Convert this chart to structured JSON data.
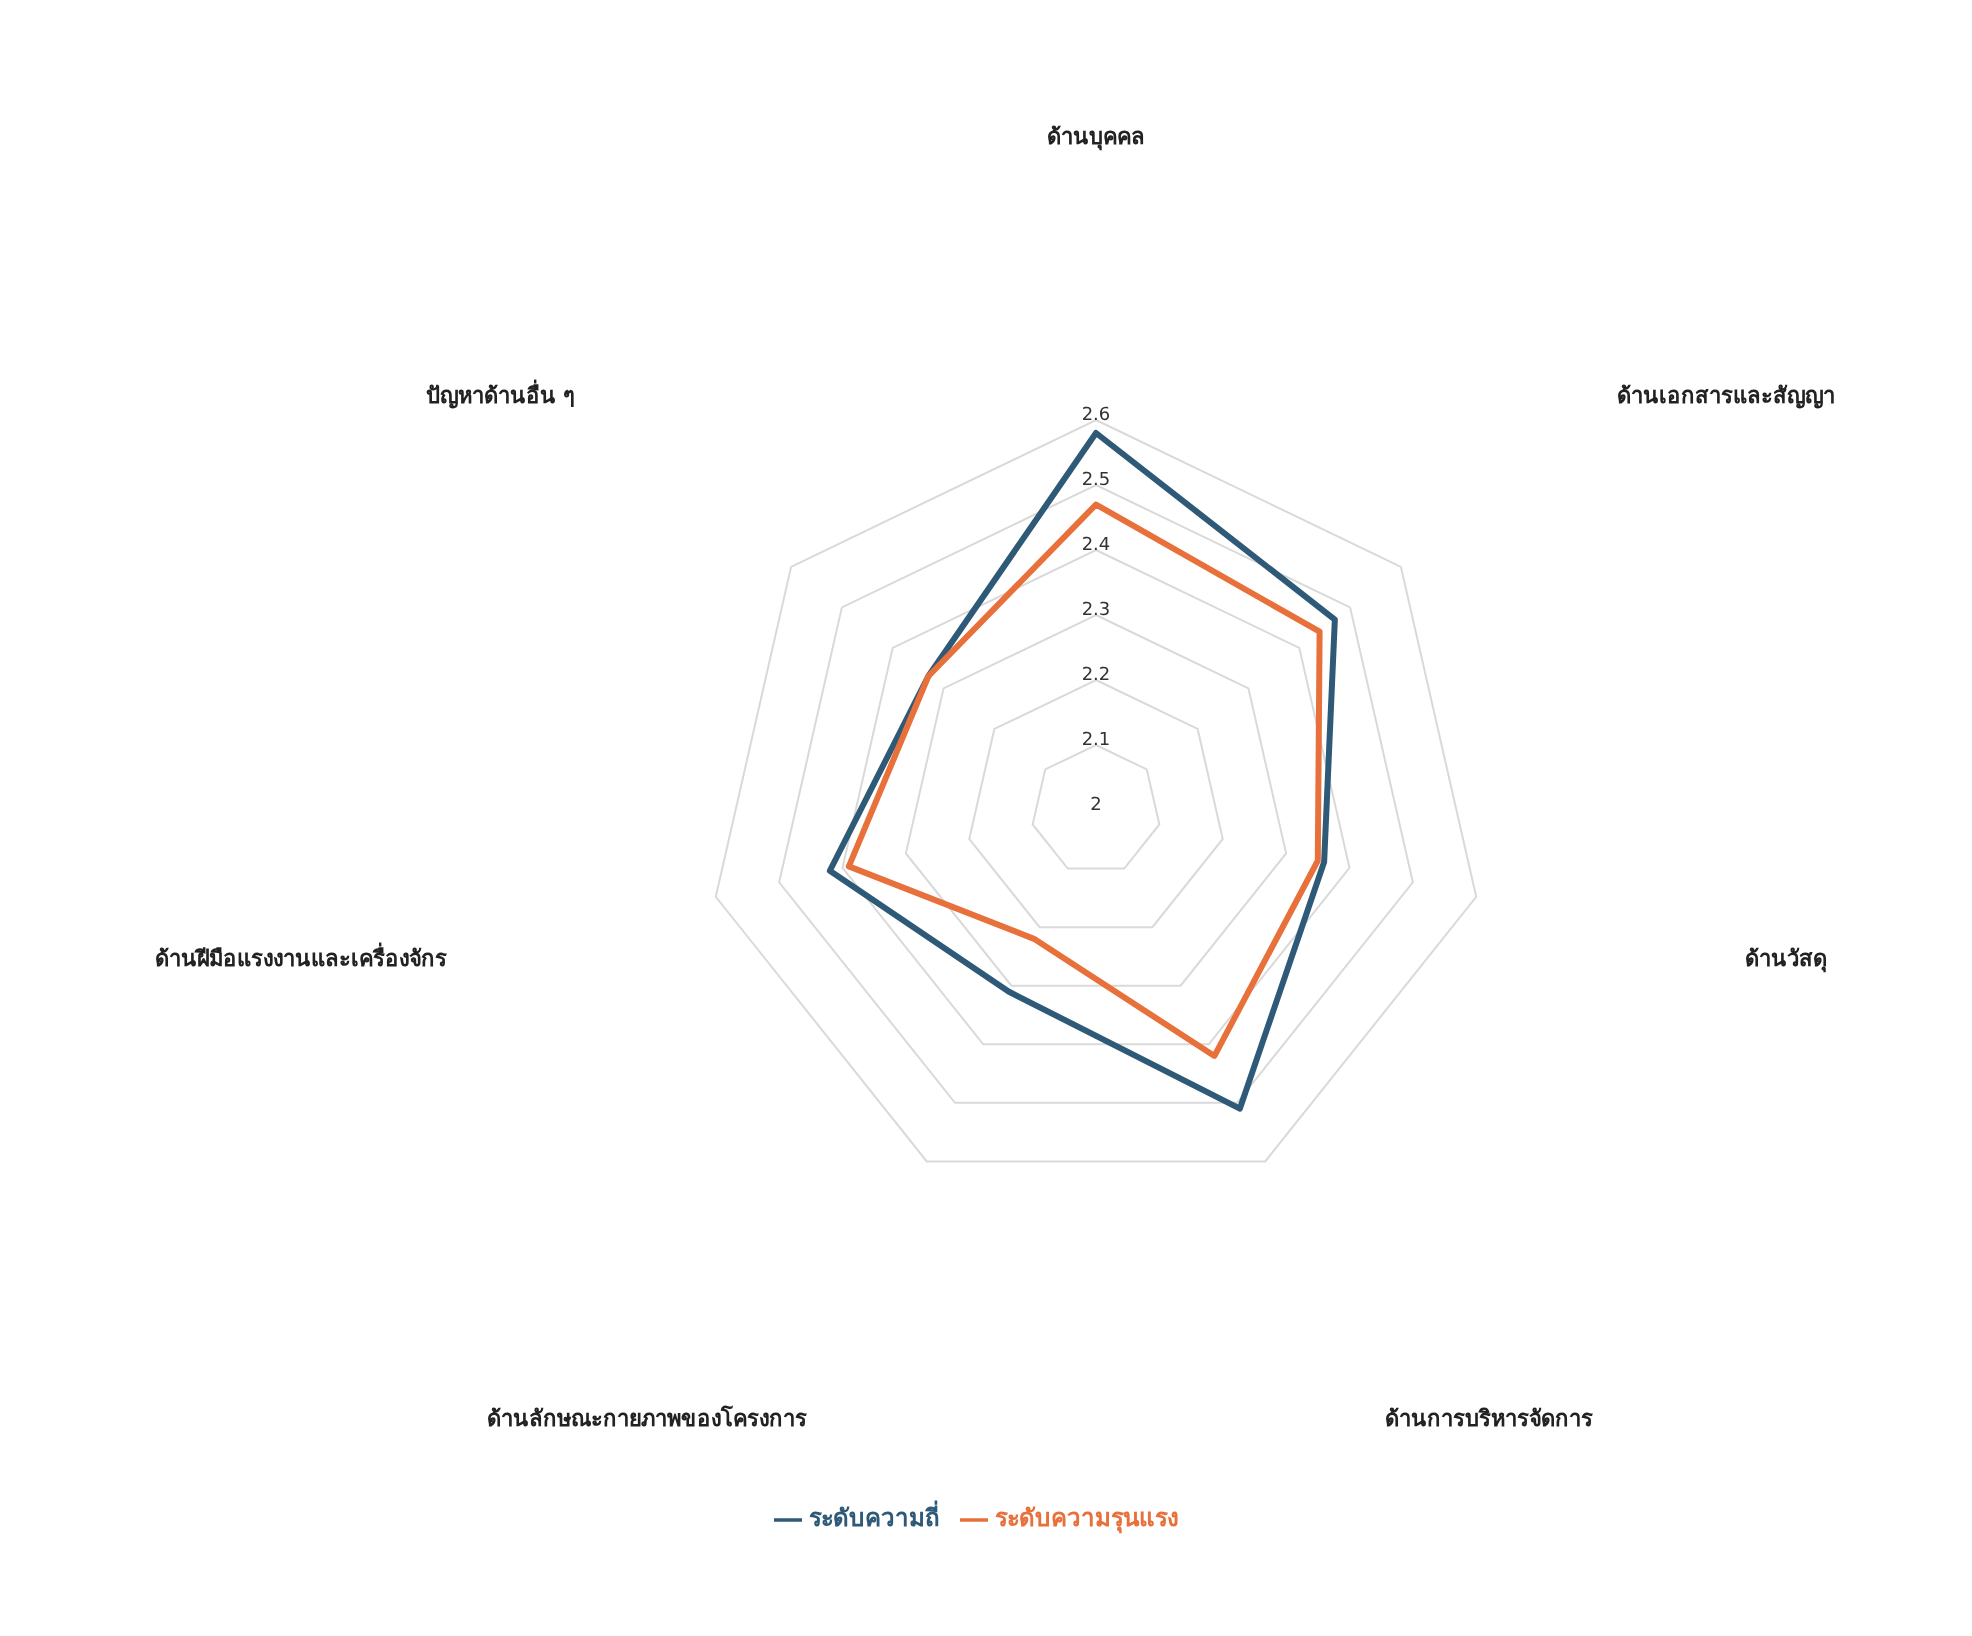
{
  "chart_data": {
    "type": "radar",
    "categories": [
      "ด้านบุคคล",
      "ด้านเอกสารและสัญญา",
      "ด้านวัสดุ",
      "ด้านการบริหารจัดการ",
      "ด้านลักษณะกายภาพของโครงการ",
      "ด้านฝีมือแรงงานและเครื่องจักร",
      "ปัญหาด้านอื่น ๆ"
    ],
    "series": [
      {
        "name": "ระดับความถี่",
        "color": "#2e5a78",
        "values": [
          2.58,
          2.47,
          2.36,
          2.51,
          2.31,
          2.42,
          2.33
        ]
      },
      {
        "name": "ระดับความรุนแรง",
        "color": "#e8703a",
        "values": [
          2.47,
          2.44,
          2.35,
          2.42,
          2.22,
          2.39,
          2.33
        ]
      }
    ],
    "ylim": [
      2,
      2.6
    ],
    "yticks": [
      2,
      2.1,
      2.2,
      2.3,
      2.4,
      2.5,
      2.6
    ],
    "grid": true,
    "legend": "bottom",
    "marker": "none",
    "line_style": "solid"
  }
}
